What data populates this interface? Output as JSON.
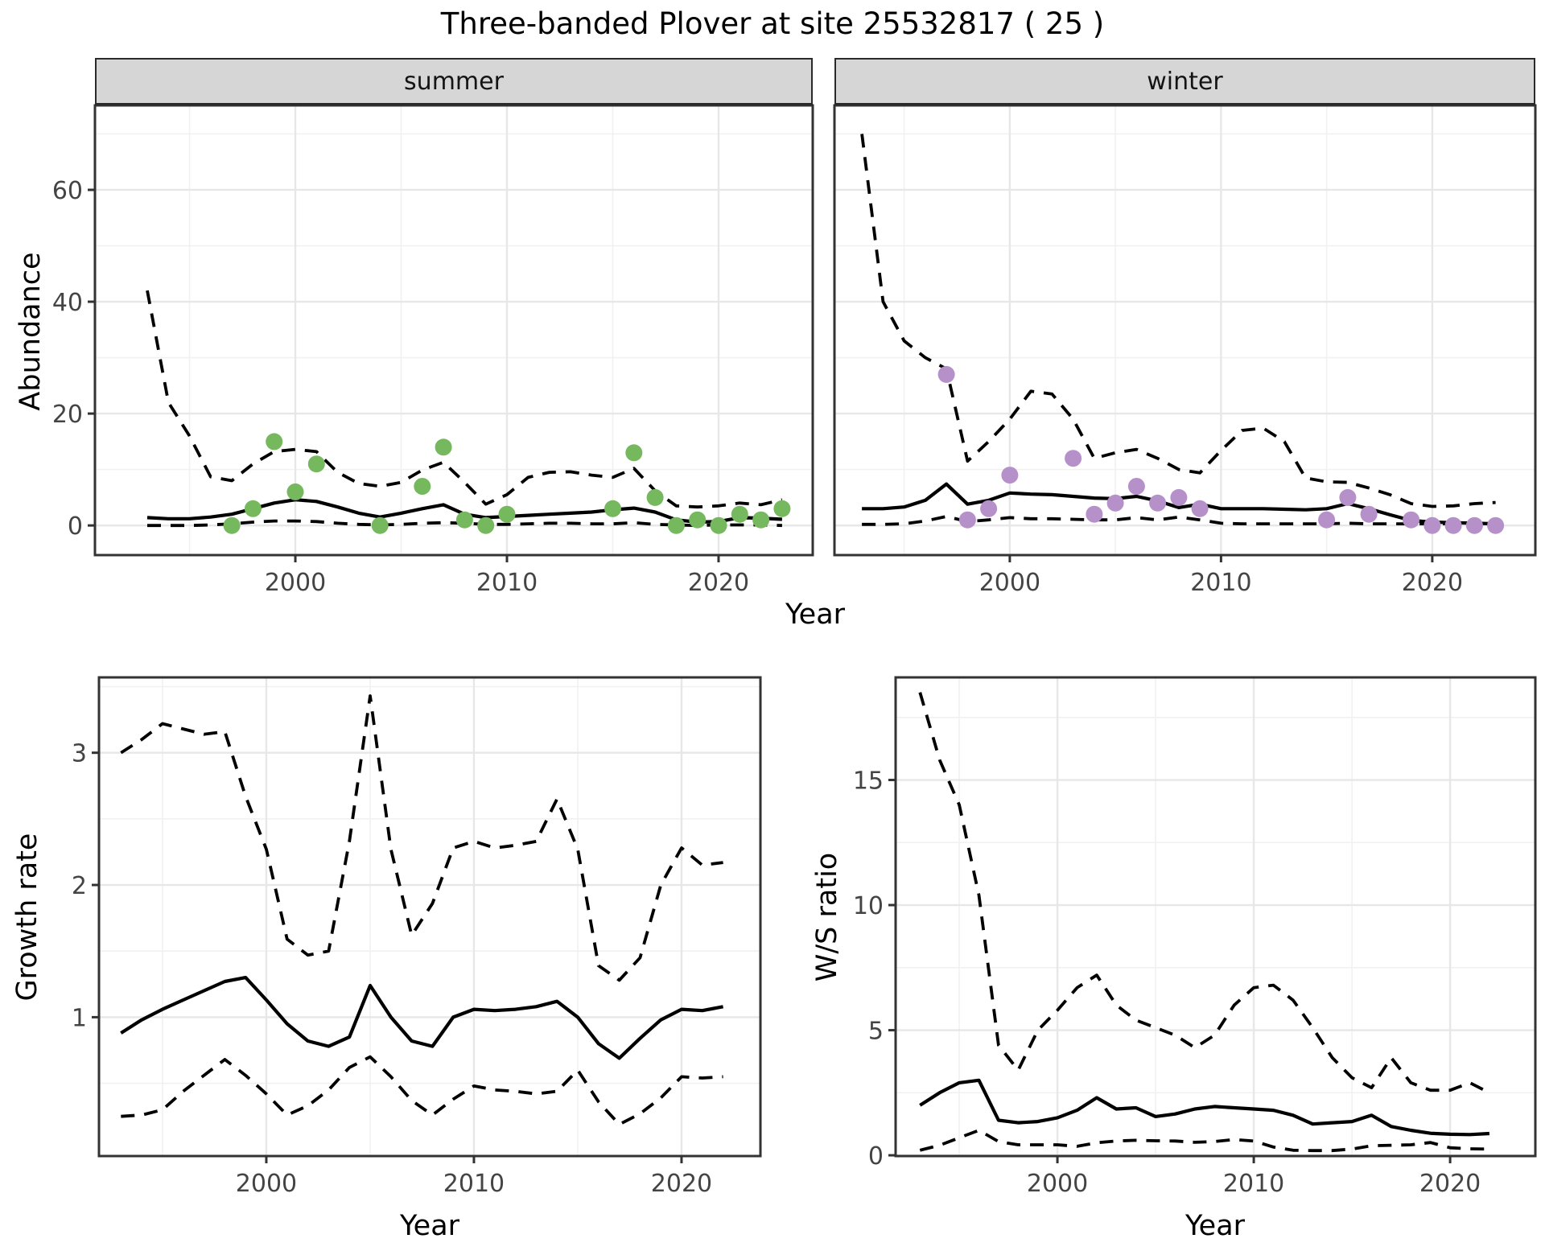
{
  "title": "Three-banded Plover at site 25532817 ( 25 )",
  "facets": {
    "summer": "summer",
    "winter": "winter"
  },
  "axis_titles": {
    "y_abundance": "Abundance",
    "y_growth": "Growth rate",
    "y_ws": "W/S ratio",
    "x": "Year"
  },
  "colors": {
    "summer_point": "#75b85e",
    "winter_point": "#b690c8",
    "line": "#000000",
    "grid_major": "#e7e7e7",
    "grid_minor": "#f1f1f1",
    "strip_fill": "#d6d6d6",
    "panel_border": "#333333",
    "tick_text": "#444444",
    "tick_mark": "#333333"
  },
  "chart_data": [
    {
      "id": "summer",
      "type": "line",
      "title": "summer",
      "xlabel": "Year",
      "ylabel": "Abundance",
      "grid": true,
      "xlim": [
        1990.53,
        2024.45
      ],
      "ylim": [
        -5.3,
        75.1
      ],
      "x_ticks": [
        2000,
        2010,
        2020
      ],
      "x_minor": [
        1995,
        2005,
        2015
      ],
      "y_ticks": [
        0,
        20,
        40,
        60
      ],
      "y_minor": [
        10,
        30,
        50,
        70
      ],
      "years": [
        1993,
        1994,
        1995,
        1996,
        1997,
        1998,
        1999,
        2000,
        2001,
        2002,
        2003,
        2004,
        2005,
        2006,
        2007,
        2008,
        2009,
        2010,
        2011,
        2012,
        2013,
        2014,
        2015,
        2016,
        2017,
        2018,
        2019,
        2020,
        2021,
        2022,
        2023
      ],
      "series": [
        {
          "name": "upper_95ci",
          "style": "dashed",
          "values": [
            42,
            22,
            16,
            8.7,
            8,
            11,
            13.2,
            13.6,
            13.2,
            9.5,
            7.5,
            7,
            7.7,
            9.9,
            11.3,
            7.7,
            3.8,
            5.5,
            8.6,
            9.5,
            9.6,
            9,
            8.6,
            10.2,
            6.2,
            3.5,
            3.3,
            3.5,
            4,
            3.7,
            4.6
          ]
        },
        {
          "name": "median",
          "style": "solid",
          "values": [
            1.4,
            1.2,
            1.2,
            1.5,
            2,
            3,
            4,
            4.6,
            4.3,
            3.3,
            2.2,
            1.5,
            2.2,
            3,
            3.7,
            2,
            1.4,
            1.6,
            1.8,
            2,
            2.2,
            2.4,
            2.8,
            3.1,
            2.4,
            1,
            0.6,
            0.7,
            1.4,
            1.3,
            1.1
          ]
        },
        {
          "name": "lower_95ci",
          "style": "dashed",
          "values": [
            0,
            0,
            0,
            0.1,
            0.3,
            0.6,
            0.8,
            0.8,
            0.7,
            0.4,
            0.2,
            0.1,
            0.2,
            0.4,
            0.5,
            0.4,
            0.2,
            0.2,
            0.3,
            0.4,
            0.4,
            0.3,
            0.3,
            0.5,
            0.2,
            0.1,
            0,
            0.1,
            0.1,
            0.1,
            0
          ]
        }
      ],
      "points": {
        "name": "observed-summer-counts",
        "color_key": "summer_point",
        "years": [
          1997,
          1998,
          1999,
          2000,
          2001,
          2004,
          2006,
          2007,
          2008,
          2009,
          2010,
          2015,
          2016,
          2017,
          2018,
          2019,
          2020,
          2021,
          2022,
          2023
        ],
        "values": [
          0,
          3,
          15,
          6,
          11,
          0,
          7,
          14,
          1,
          0,
          2,
          3,
          13,
          5,
          0,
          1,
          0,
          2,
          1,
          3
        ]
      }
    },
    {
      "id": "winter",
      "type": "line",
      "title": "winter",
      "xlabel": "Year",
      "ylabel": "Abundance",
      "grid": true,
      "xlim": [
        1991.7,
        2024.88
      ],
      "ylim": [
        -5.3,
        75.1
      ],
      "x_ticks": [
        2000,
        2010,
        2020
      ],
      "x_minor": [
        1995,
        2005,
        2015
      ],
      "y_ticks": [
        0,
        20,
        40,
        60
      ],
      "y_minor": [
        10,
        30,
        50,
        70
      ],
      "years": [
        1993,
        1994,
        1995,
        1996,
        1997,
        1998,
        1999,
        2000,
        2001,
        2002,
        2003,
        2004,
        2005,
        2006,
        2007,
        2008,
        2009,
        2010,
        2011,
        2012,
        2013,
        2014,
        2015,
        2016,
        2017,
        2018,
        2019,
        2020,
        2021,
        2022,
        2023
      ],
      "series": [
        {
          "name": "upper_95ci",
          "style": "dashed",
          "values": [
            70,
            40,
            33,
            30,
            28,
            11.5,
            15,
            19,
            24,
            23.5,
            19,
            12,
            13,
            13.6,
            12,
            10,
            9.4,
            13.4,
            17,
            17.4,
            15,
            8.5,
            7.8,
            7.7,
            6.7,
            5.5,
            3.9,
            3.4,
            3.5,
            3.9,
            4.1
          ]
        },
        {
          "name": "median",
          "style": "solid",
          "values": [
            3,
            3,
            3.3,
            4.5,
            7.4,
            3.8,
            4.5,
            5.8,
            5.6,
            5.5,
            5.2,
            4.9,
            4.8,
            5.2,
            4.4,
            3.2,
            3.8,
            3,
            3,
            3,
            2.9,
            2.8,
            3,
            3.9,
            3,
            1.9,
            0.9,
            0.6,
            0.5,
            0.4,
            0.3
          ]
        },
        {
          "name": "lower_95ci",
          "style": "dashed",
          "values": [
            0.2,
            0.2,
            0.3,
            0.8,
            1.6,
            0.7,
            1,
            1.4,
            1.2,
            1.2,
            1.1,
            1,
            1,
            1.4,
            1,
            1.5,
            1,
            0.4,
            0.3,
            0.3,
            0.3,
            0.3,
            0.3,
            0.4,
            0.3,
            0.3,
            0.3,
            0.3,
            0.3,
            0.3,
            0.2
          ]
        }
      ],
      "points": {
        "name": "observed-winter-counts",
        "color_key": "winter_point",
        "years": [
          1997,
          1998,
          1999,
          2000,
          2003,
          2004,
          2005,
          2006,
          2007,
          2008,
          2009,
          2015,
          2016,
          2017,
          2019,
          2020,
          2021,
          2022,
          2023
        ],
        "values": [
          27,
          1,
          3,
          9,
          12,
          2,
          4,
          7,
          4,
          5,
          3,
          1,
          5,
          2,
          1,
          0,
          0,
          0,
          0
        ]
      }
    },
    {
      "id": "growth",
      "type": "line",
      "title": "",
      "xlabel": "Year",
      "ylabel": "Growth rate",
      "grid": true,
      "xlim": [
        1991.94,
        2023.8
      ],
      "ylim": [
        -0.05,
        3.57
      ],
      "x_ticks": [
        2000,
        2010,
        2020
      ],
      "x_minor": [
        1995,
        2005,
        2015
      ],
      "y_ticks": [
        1,
        2,
        3
      ],
      "y_minor": [
        0.5,
        1.5,
        2.5,
        3.5
      ],
      "years": [
        1993,
        1994,
        1995,
        1996,
        1997,
        1998,
        1999,
        2000,
        2001,
        2002,
        2003,
        2004,
        2005,
        2006,
        2007,
        2008,
        2009,
        2010,
        2011,
        2012,
        2013,
        2014,
        2015,
        2016,
        2017,
        2018,
        2019,
        2020,
        2021,
        2022
      ],
      "series": [
        {
          "name": "upper_95ci",
          "style": "dashed",
          "values": [
            3,
            3.1,
            3.22,
            3.18,
            3.14,
            3.16,
            2.67,
            2.27,
            1.59,
            1.47,
            1.5,
            2.33,
            3.43,
            2.27,
            1.62,
            1.86,
            2.28,
            2.33,
            2.28,
            2.3,
            2.33,
            2.65,
            2.27,
            1.39,
            1.28,
            1.45,
            2,
            2.28,
            2.15,
            2.17
          ]
        },
        {
          "name": "median",
          "style": "solid",
          "values": [
            0.88,
            0.98,
            1.06,
            1.13,
            1.2,
            1.27,
            1.3,
            1.13,
            0.95,
            0.82,
            0.78,
            0.85,
            1.24,
            1,
            0.82,
            0.78,
            1,
            1.06,
            1.05,
            1.06,
            1.08,
            1.12,
            1,
            0.8,
            0.69,
            0.84,
            0.98,
            1.06,
            1.05,
            1.08
          ]
        },
        {
          "name": "lower_95ci",
          "style": "dashed",
          "values": [
            0.25,
            0.26,
            0.3,
            0.44,
            0.56,
            0.68,
            0.56,
            0.42,
            0.26,
            0.33,
            0.45,
            0.62,
            0.7,
            0.55,
            0.37,
            0.26,
            0.38,
            0.48,
            0.45,
            0.44,
            0.42,
            0.44,
            0.6,
            0.36,
            0.19,
            0.27,
            0.39,
            0.55,
            0.54,
            0.55
          ]
        }
      ]
    },
    {
      "id": "ws",
      "type": "line",
      "title": "",
      "xlabel": "Year",
      "ylabel": "W/S ratio",
      "grid": true,
      "xlim": [
        1991.76,
        2024.34
      ],
      "ylim": [
        -0.03,
        19.1
      ],
      "x_ticks": [
        2000,
        2010,
        2020
      ],
      "x_minor": [
        1995,
        2005,
        2015
      ],
      "y_ticks": [
        0,
        5,
        10,
        15
      ],
      "y_minor": [
        2.5,
        7.5,
        12.5,
        17.5
      ],
      "years": [
        1993,
        1994,
        1995,
        1996,
        1997,
        1998,
        1999,
        2000,
        2001,
        2002,
        2003,
        2004,
        2005,
        2006,
        2007,
        2008,
        2009,
        2010,
        2011,
        2012,
        2013,
        2014,
        2015,
        2016,
        2017,
        2018,
        2019,
        2020,
        2021,
        2022
      ],
      "series": [
        {
          "name": "upper_95ci",
          "style": "dashed",
          "values": [
            18.5,
            15.8,
            14,
            10.4,
            4.4,
            3.4,
            5,
            5.8,
            6.7,
            7.2,
            6,
            5.4,
            5.1,
            4.8,
            4.3,
            4.8,
            6,
            6.7,
            6.8,
            6.2,
            5.1,
            3.9,
            3.1,
            2.7,
            3.9,
            2.9,
            2.6,
            2.6,
            2.9,
            2.5
          ]
        },
        {
          "name": "median",
          "style": "solid",
          "values": [
            2,
            2.5,
            2.9,
            3,
            1.4,
            1.3,
            1.35,
            1.5,
            1.8,
            2.3,
            1.85,
            1.9,
            1.55,
            1.65,
            1.85,
            1.95,
            1.9,
            1.85,
            1.8,
            1.6,
            1.25,
            1.3,
            1.35,
            1.6,
            1.15,
            1,
            0.88,
            0.84,
            0.83,
            0.87
          ]
        },
        {
          "name": "lower_95ci",
          "style": "dashed",
          "values": [
            0.2,
            0.4,
            0.7,
            1,
            0.55,
            0.42,
            0.42,
            0.42,
            0.36,
            0.5,
            0.57,
            0.6,
            0.58,
            0.57,
            0.52,
            0.55,
            0.63,
            0.57,
            0.33,
            0.2,
            0.19,
            0.19,
            0.25,
            0.38,
            0.4,
            0.42,
            0.51,
            0.3,
            0.26,
            0.25
          ]
        }
      ]
    }
  ]
}
